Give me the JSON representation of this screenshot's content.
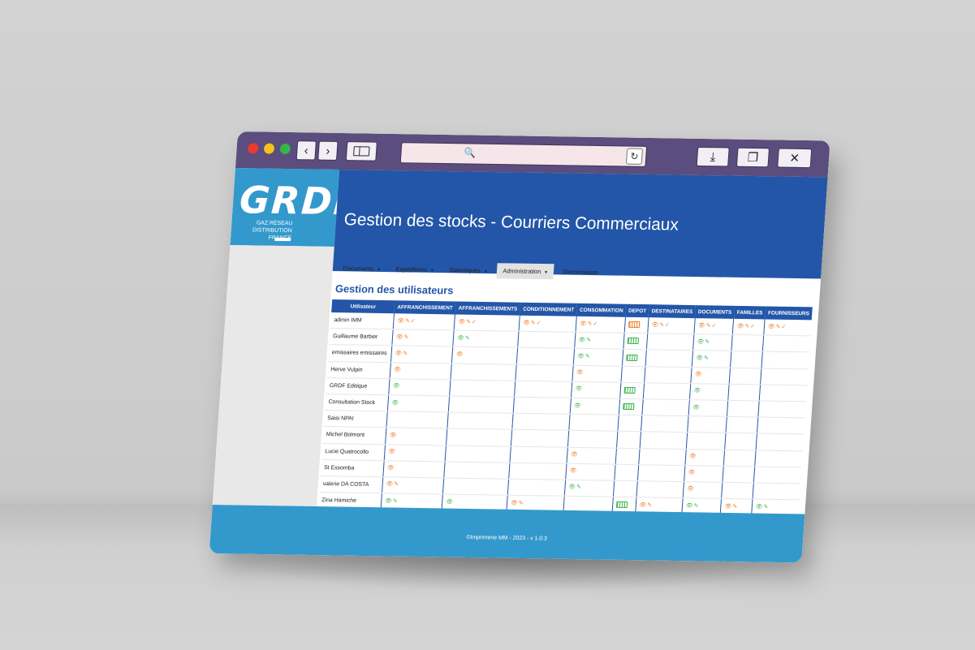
{
  "browser": {
    "search_icon": "🔍",
    "reload_icon": "↻",
    "back_icon": "‹",
    "forward_icon": "›",
    "download_icon": "⤓",
    "tabs_icon": "❐",
    "close_icon": "✕"
  },
  "brand": {
    "logo_text": "GRDF",
    "tagline_1": "GAZ RÉSEAU",
    "tagline_2": "DISTRIBUTION FRANCE",
    "color_dark": "#2356a8",
    "color_light": "#3399cc",
    "icon_orange": "#ef7a21",
    "icon_green": "#3ab54a"
  },
  "header": {
    "title": "Gestion des stocks - Courriers Commerciaux"
  },
  "nav": {
    "items": [
      {
        "label": "Documents",
        "caret": "▾"
      },
      {
        "label": "Expéditions",
        "caret": "▾"
      },
      {
        "label": "Statistiques",
        "caret": "▾"
      },
      {
        "label": "Administration",
        "caret": "▾"
      },
      {
        "label": "Déconnexion",
        "caret": ""
      }
    ]
  },
  "section_title": "Gestion des utilisateurs",
  "table": {
    "headers": [
      "Utilisateur",
      "AFFRANCHISSEMENT",
      "AFFRANCHISSEMENTS",
      "CONDITIONNEMENT",
      "CONSOMMATION",
      "DEPOT",
      "DESTINATAIRES",
      "DOCUMENTS",
      "FAMILLES",
      "FOURNISSEURS"
    ],
    "rows": [
      {
        "user": "admin IMM",
        "cells": [
          "o:vec",
          "o:vec",
          "o:vec",
          "o:vec",
          "o:d",
          "o:vec",
          "o:vec",
          "o:vec",
          "o:vec"
        ]
      },
      {
        "user": "Guillaume Barbier",
        "cells": [
          "o:ve",
          "g:ve",
          "",
          "g:ve",
          "g:d",
          "",
          "g:ve",
          "",
          ""
        ]
      },
      {
        "user": "emissaires emissaires",
        "cells": [
          "o:ve",
          "o:v",
          "",
          "g:ve",
          "g:d",
          "",
          "g:ve",
          "",
          ""
        ]
      },
      {
        "user": "Herve Vulpin",
        "cells": [
          "o:v",
          "",
          "",
          "o:v",
          "",
          "",
          "o:v",
          "",
          ""
        ]
      },
      {
        "user": "GRDF Editique",
        "cells": [
          "g:v",
          "",
          "",
          "g:v",
          "g:d",
          "",
          "g:v",
          "",
          ""
        ]
      },
      {
        "user": "Consultation Stock",
        "cells": [
          "g:v",
          "",
          "",
          "g:v",
          "g:d",
          "",
          "g:v",
          "",
          ""
        ]
      },
      {
        "user": "Saisi NPAI",
        "cells": [
          "",
          "",
          "",
          "",
          "",
          "",
          "",
          "",
          ""
        ]
      },
      {
        "user": "Michel Bolmont",
        "cells": [
          "o:v",
          "",
          "",
          "",
          "",
          "",
          "",
          "",
          ""
        ]
      },
      {
        "user": "Lucie Quatrocollo",
        "cells": [
          "o:v",
          "",
          "",
          "o:v",
          "",
          "",
          "o:v",
          "",
          ""
        ]
      },
      {
        "user": "St Essomba",
        "cells": [
          "o:v",
          "",
          "",
          "o:v",
          "",
          "",
          "o:v",
          "",
          ""
        ]
      },
      {
        "user": "valerie DA COSTA",
        "cells": [
          "o:ve",
          "",
          "",
          "g:ve",
          "",
          "",
          "o:v",
          "",
          ""
        ]
      },
      {
        "user": "Zina Hamiche",
        "cells": [
          "g:ve",
          "g:v",
          "o:ve",
          "",
          "g:d",
          "o:ve",
          "g:ve",
          "o:ve",
          "g:ve"
        ]
      }
    ]
  },
  "footer": {
    "text": "©Imprimerie MM - 2023 - v 1.0.3"
  }
}
